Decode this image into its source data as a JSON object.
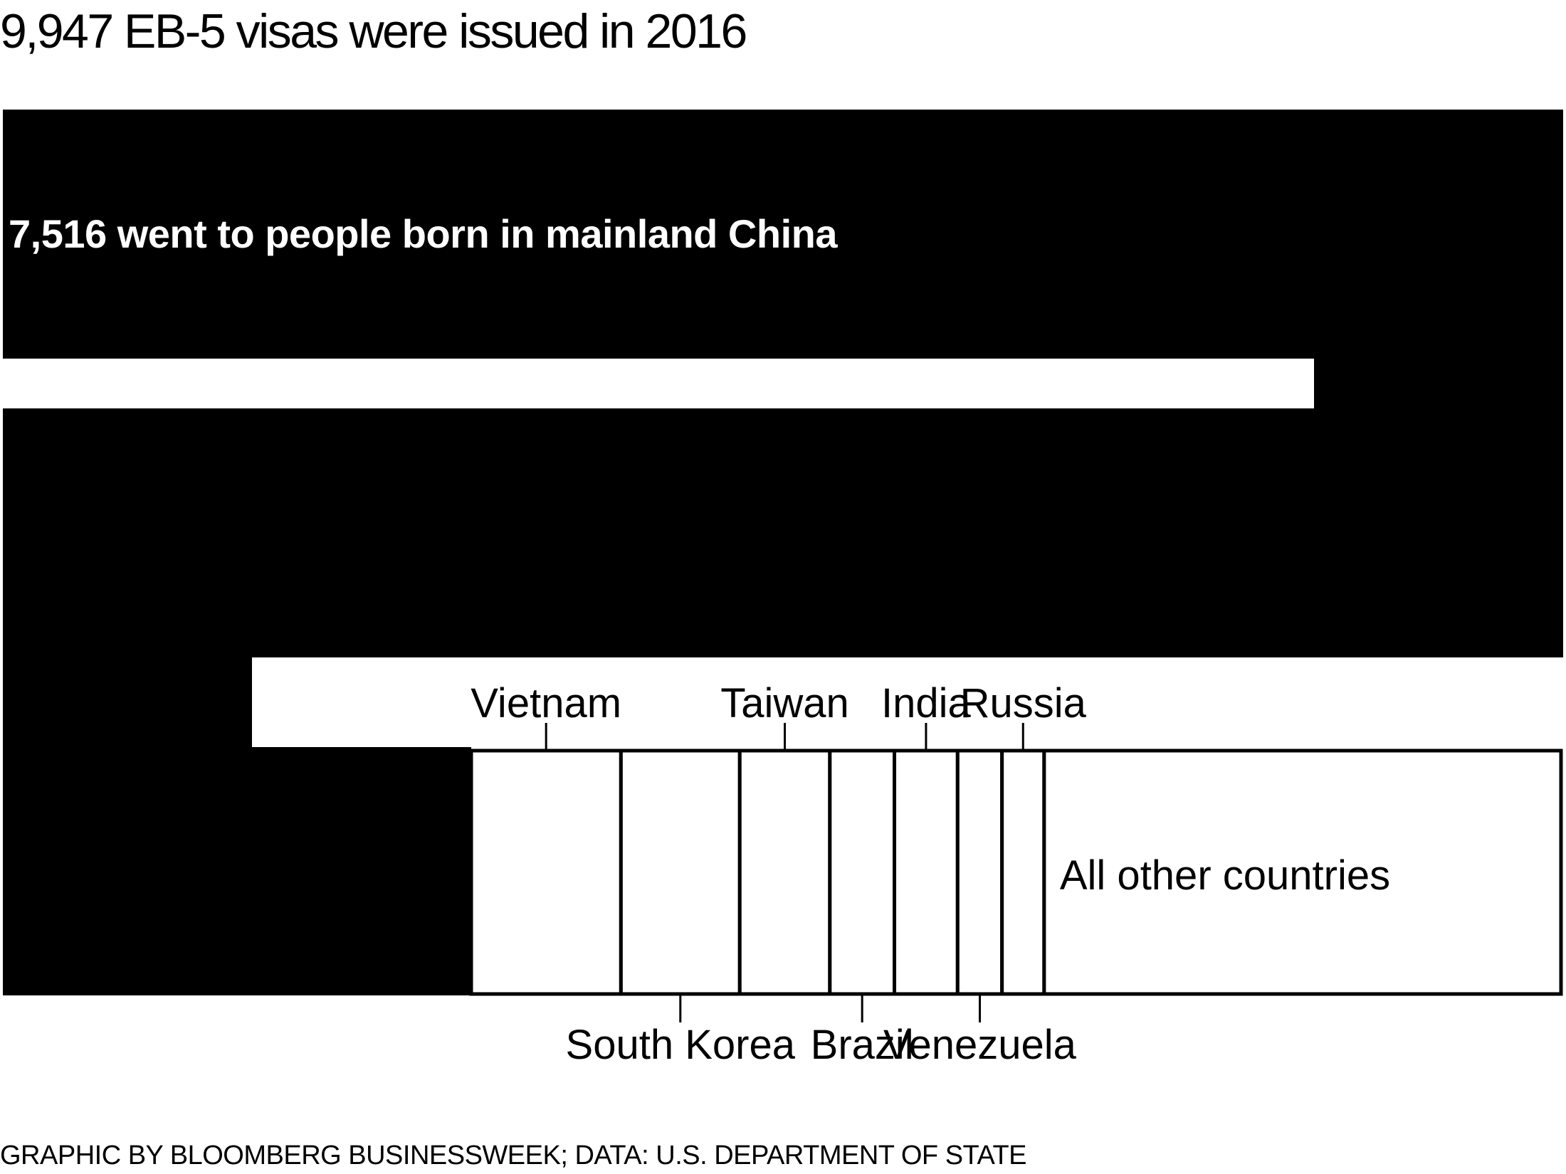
{
  "title": "9,947 EB-5 visas were issued in 2016",
  "source": "GRAPHIC BY BLOOMBERG BUSINESSWEEK; DATA: U.S. DEPARTMENT OF STATE",
  "chart_data": {
    "type": "bar",
    "title": "9,947 EB-5 visas were issued in 2016",
    "total": 9947,
    "main_segment": {
      "label": "7,516 went to people born in mainland China",
      "value": 7516,
      "color": "#000000"
    },
    "categories": [
      "Vietnam",
      "South Korea",
      "Taiwan",
      "Brazil",
      "India",
      "Venezuela",
      "Russia",
      "All other countries"
    ],
    "values": [
      334,
      265,
      201,
      144,
      141,
      99,
      94,
      1153
    ],
    "label_placement": [
      "above",
      "below",
      "above",
      "below",
      "above",
      "below",
      "above",
      "inside"
    ]
  }
}
